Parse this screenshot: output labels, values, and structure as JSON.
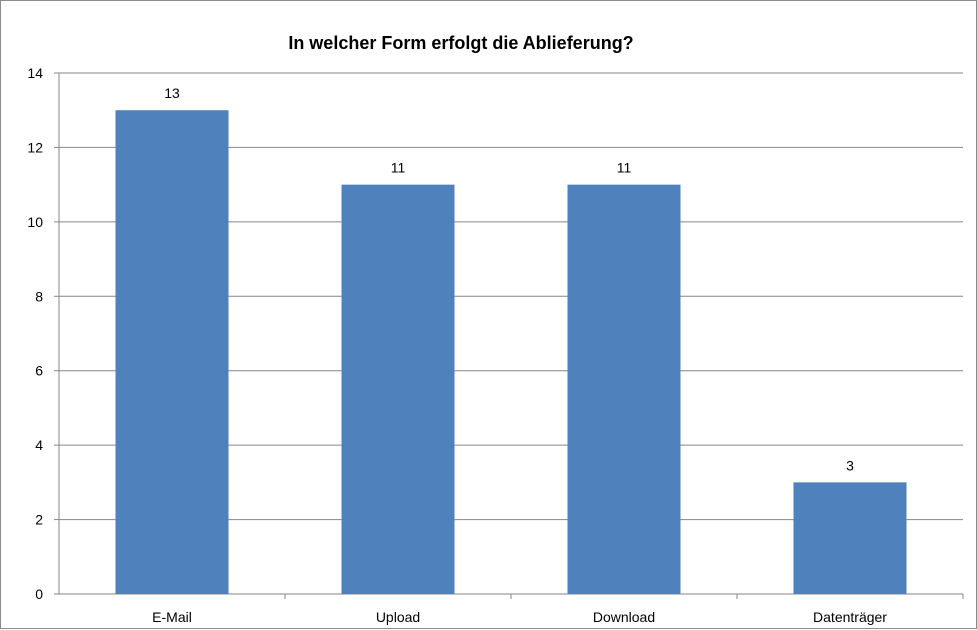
{
  "chart_data": {
    "type": "bar",
    "title": "In welcher Form erfolgt die Ablieferung?",
    "categories": [
      "E-Mail",
      "Upload",
      "Download",
      "Datenträger"
    ],
    "values": [
      13,
      11,
      11,
      3
    ],
    "data_labels": [
      "13",
      "11",
      "11",
      "3"
    ],
    "ylim": [
      0,
      14
    ],
    "yticks": [
      0,
      2,
      4,
      6,
      8,
      10,
      12,
      14
    ],
    "ytick_labels": [
      "0",
      "2",
      "4",
      "6",
      "8",
      "10",
      "12",
      "14"
    ],
    "grid": true,
    "legend": "none",
    "bar_color": "#4f81bd",
    "grid_color": "#868686"
  }
}
